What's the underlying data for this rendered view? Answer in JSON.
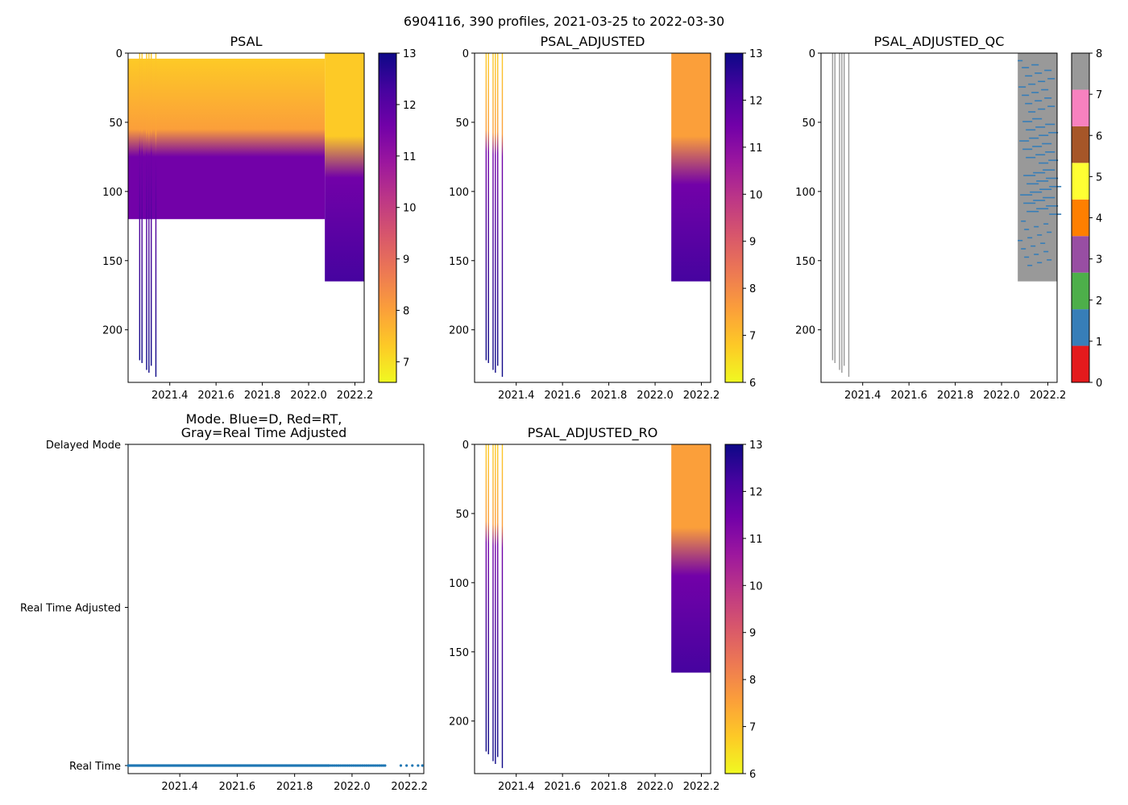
{
  "figure": {
    "title": "6904116, 390 profiles, 2021-03-25 to 2022-03-30"
  },
  "palette": {
    "plasma": [
      "#0d0887",
      "#46039f",
      "#7201a8",
      "#9c179e",
      "#bd3786",
      "#d8576b",
      "#ed7953",
      "#fb9f3a",
      "#fdca26",
      "#f0f921"
    ],
    "qc": [
      "#e41a1c",
      "#377eb8",
      "#4daf4a",
      "#984ea3",
      "#ff7f00",
      "#ffff33",
      "#a65628",
      "#f781bf",
      "#999999"
    ],
    "mode_point": "#1f77b4"
  },
  "chart_data": [
    {
      "id": "psal",
      "type": "heatmap",
      "title": "PSAL",
      "xlim": [
        2021.22,
        2022.24
      ],
      "ylim": [
        238,
        0
      ],
      "xticks": [
        "2021.4",
        "2021.6",
        "2021.8",
        "2022.0",
        "2022.2"
      ],
      "yticks": [
        "0",
        "50",
        "100",
        "150",
        "200"
      ],
      "colorbar": {
        "min": 6.6,
        "max": 13.0,
        "ticks": [
          "7",
          "8",
          "9",
          "10",
          "11",
          "12",
          "13"
        ]
      },
      "regions": [
        {
          "x0": 2021.22,
          "x1": 2022.07,
          "y0": 4,
          "y1": 120,
          "gradient": [
            [
              0,
              7.2
            ],
            [
              55,
              7.9
            ],
            [
              75,
              11.4
            ],
            [
              120,
              11.8
            ]
          ]
        },
        {
          "x0": 2022.07,
          "x1": 2022.24,
          "y0": 0,
          "y1": 165,
          "gradient": [
            [
              0,
              7.0
            ],
            [
              60,
              7.6
            ],
            [
              90,
              11.5
            ],
            [
              165,
              12.3
            ]
          ]
        }
      ],
      "profiles": [
        2021.27,
        2021.28,
        2021.3,
        2021.31,
        2021.32,
        2021.34
      ],
      "profile_depths": [
        222,
        224,
        229,
        231,
        226,
        234
      ]
    },
    {
      "id": "psal_adj",
      "type": "heatmap",
      "title": "PSAL_ADJUSTED",
      "xlim": [
        2021.22,
        2022.24
      ],
      "ylim": [
        238,
        0
      ],
      "xticks": [
        "2021.4",
        "2021.6",
        "2021.8",
        "2022.0",
        "2022.2"
      ],
      "yticks": [
        "0",
        "50",
        "100",
        "150",
        "200"
      ],
      "colorbar": {
        "min": 6.0,
        "max": 13.0,
        "ticks": [
          "6",
          "7",
          "8",
          "9",
          "10",
          "11",
          "12",
          "13"
        ]
      },
      "regions": [
        {
          "x0": 2022.07,
          "x1": 2022.24,
          "y0": 0,
          "y1": 165,
          "gradient": [
            [
              0,
              7.2
            ],
            [
              60,
              7.5
            ],
            [
              95,
              11.3
            ],
            [
              165,
              12.2
            ]
          ]
        }
      ],
      "profiles": [
        2021.27,
        2021.28,
        2021.3,
        2021.31,
        2021.32,
        2021.34
      ],
      "profile_depths": [
        222,
        224,
        229,
        231,
        226,
        234
      ]
    },
    {
      "id": "psal_qc",
      "type": "heatmap",
      "title": "PSAL_ADJUSTED_QC",
      "xlim": [
        2021.22,
        2022.24
      ],
      "ylim": [
        238,
        0
      ],
      "xticks": [
        "2021.4",
        "2021.6",
        "2021.8",
        "2022.0",
        "2022.2"
      ],
      "yticks": [
        "0",
        "50",
        "100",
        "150",
        "200"
      ],
      "colorbar": {
        "categorical": true,
        "categories": [
          "0",
          "1",
          "2",
          "3",
          "4",
          "5",
          "6",
          "7",
          "8"
        ]
      },
      "regions": [
        {
          "x0": 2022.07,
          "x1": 2022.24,
          "y0": 0,
          "y1": 165,
          "qc": 8
        }
      ],
      "profiles": [
        2021.27,
        2021.28,
        2021.3,
        2021.31,
        2021.32,
        2021.34
      ],
      "profile_depths": [
        222,
        224,
        229,
        231,
        226,
        234
      ]
    },
    {
      "id": "mode",
      "type": "scatter",
      "title": "Mode. Blue=D, Red=RT,\nGray=Real Time Adjusted",
      "xlim": [
        2021.22,
        2022.25
      ],
      "xticks": [
        "2021.4",
        "2021.6",
        "2021.8",
        "2022.0",
        "2022.2"
      ],
      "ycategories": [
        "Real Time",
        "Real Time Adjusted",
        "Delayed Mode"
      ],
      "points": {
        "mode": "Real Time",
        "dense_from": 2021.22,
        "dense_to": 2021.92,
        "sparse_to": 2022.12,
        "tail": [
          2022.17,
          2022.19,
          2022.21,
          2022.23,
          2022.245
        ]
      }
    },
    {
      "id": "psal_ro",
      "type": "heatmap",
      "title": "PSAL_ADJUSTED_RO",
      "xlim": [
        2021.22,
        2022.24
      ],
      "ylim": [
        238,
        0
      ],
      "xticks": [
        "2021.4",
        "2021.6",
        "2021.8",
        "2022.0",
        "2022.2"
      ],
      "yticks": [
        "0",
        "50",
        "100",
        "150",
        "200"
      ],
      "colorbar": {
        "min": 6.0,
        "max": 13.0,
        "ticks": [
          "6",
          "7",
          "8",
          "9",
          "10",
          "11",
          "12",
          "13"
        ]
      },
      "regions": [
        {
          "x0": 2022.07,
          "x1": 2022.24,
          "y0": 0,
          "y1": 165,
          "gradient": [
            [
              0,
              7.2
            ],
            [
              60,
              7.5
            ],
            [
              95,
              11.3
            ],
            [
              165,
              12.2
            ]
          ]
        }
      ],
      "profiles": [
        2021.27,
        2021.28,
        2021.3,
        2021.31,
        2021.32,
        2021.34
      ],
      "profile_depths": [
        222,
        224,
        229,
        231,
        226,
        234
      ]
    }
  ]
}
